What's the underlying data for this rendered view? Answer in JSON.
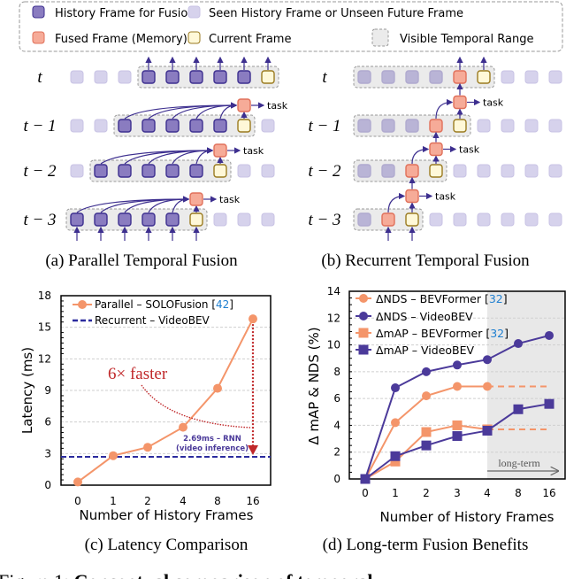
{
  "legend": {
    "history": "History Frame for Fusion",
    "seen": "Seen History Frame or Unseen Future Frame",
    "fused": "Fused Frame (Memory)",
    "current": "Current Frame",
    "visible": "Visible Temporal Range"
  },
  "colors": {
    "history_fill": "#8a7cc0",
    "history_stroke": "#3d2f8f",
    "seen_fill": "#d6d2ec",
    "seen_stroke": "#c8c3e4",
    "fused_fill": "#f6ab98",
    "fused_stroke": "#e0705a",
    "current_fill": "#fff8d8",
    "current_stroke": "#9a7a20",
    "range_fill": "#ebebeb",
    "range_stroke": "#9a9a9a",
    "arrow": "#3d2f8f",
    "orange": "#f4956a",
    "purple": "#4b3a9a",
    "navy": "#2b2b9e",
    "red": "#c0282a",
    "cite": "#1f7fd0"
  },
  "diagram_a": {
    "caption": "(a) Parallel Temporal Fusion",
    "task_label": "task",
    "rows": [
      {
        "label": "t",
        "frames": "ssshhhhhc",
        "range": [
          3,
          8
        ]
      },
      {
        "label": "t − 1",
        "frames": "sshhhhhcs",
        "range": [
          2,
          7
        ]
      },
      {
        "label": "t − 2",
        "frames": "shhhhhcss",
        "range": [
          1,
          6
        ]
      },
      {
        "label": "t − 3",
        "frames": "hhhhhcsss",
        "range": [
          0,
          5
        ]
      }
    ]
  },
  "diagram_b": {
    "caption": "(b) Recurrent Temporal Fusion",
    "task_label": "task",
    "rows": [
      {
        "label": "t",
        "frames": "ddddfcsss",
        "range": [
          0,
          5
        ]
      },
      {
        "label": "t − 1",
        "frames": "dddfcssss",
        "range": [
          0,
          4
        ]
      },
      {
        "label": "t − 2",
        "frames": "ddfcsssss",
        "range": [
          0,
          3
        ]
      },
      {
        "label": "t − 3",
        "frames": "dfcssssss",
        "range": [
          0,
          2
        ]
      }
    ]
  },
  "chart_data": [
    {
      "type": "line",
      "caption": "(c) Latency Comparison",
      "xlabel": "Number of History Frames",
      "ylabel": "Latency (ms)",
      "categories": [
        "0",
        "1",
        "2",
        "4",
        "8",
        "16"
      ],
      "ylim": [
        0,
        18
      ],
      "yticks": [
        0,
        3,
        6,
        9,
        12,
        15,
        18
      ],
      "grid": true,
      "legend_position": "top-left",
      "series": [
        {
          "name": "Parallel – SOLOFusion [42]",
          "name_main": "Parallel – SOLOFusion [",
          "cite": "42",
          "name_end": "]",
          "values": [
            0.3,
            2.8,
            3.6,
            5.5,
            9.2,
            15.8
          ],
          "style": "solid-circle"
        },
        {
          "name": "Recurrent – VideoBEV",
          "value": 2.69,
          "style": "dashed-horizontal"
        }
      ],
      "annotations": {
        "speedup": "6× faster",
        "rnn_line1": "2.69ms – RNN",
        "rnn_line2": "(video inference)"
      }
    },
    {
      "type": "line",
      "caption": "(d) Long-term Fusion Benefits",
      "xlabel": "Number of History Frames",
      "ylabel": "Δ mAP & NDS (%)",
      "categories": [
        "0",
        "1",
        "2",
        "3",
        "4",
        "8",
        "16"
      ],
      "ylim": [
        0,
        14
      ],
      "yticks": [
        0,
        2,
        4,
        6,
        8,
        10,
        12,
        14
      ],
      "grid": true,
      "legend_position": "top-left",
      "shaded_from": "4",
      "shaded_label": "long-term",
      "series": [
        {
          "name": "ΔNDS – BEVFormer [32]",
          "name_main": "ΔNDS – BEVFormer [",
          "cite": "32",
          "name_end": "]",
          "marker": "circle",
          "color": "orange",
          "values": [
            0,
            4.2,
            6.2,
            6.9,
            6.9,
            null,
            null
          ],
          "extrapolated": 6.9
        },
        {
          "name": "ΔNDS – VideoBEV",
          "name_main": "ΔNDS – VideoBEV",
          "marker": "circle",
          "color": "purple",
          "values": [
            0,
            6.8,
            8.0,
            8.5,
            8.9,
            10.1,
            10.7
          ]
        },
        {
          "name": "ΔmAP – BEVFormer [32]",
          "name_main": "ΔmAP – BEVFormer [",
          "cite": "32",
          "name_end": "]",
          "marker": "square",
          "color": "orange",
          "values": [
            0,
            1.3,
            3.5,
            4.0,
            3.7,
            null,
            null
          ],
          "extrapolated": 3.7
        },
        {
          "name": "ΔmAP – VideoBEV",
          "name_main": "ΔmAP – VideoBEV",
          "marker": "square",
          "color": "purple",
          "values": [
            0,
            1.7,
            2.5,
            3.2,
            3.6,
            5.2,
            5.6
          ]
        }
      ]
    }
  ],
  "figure_caption": {
    "prefix": "Figure 1:",
    "text": "Conceptual comparison of temporal"
  }
}
